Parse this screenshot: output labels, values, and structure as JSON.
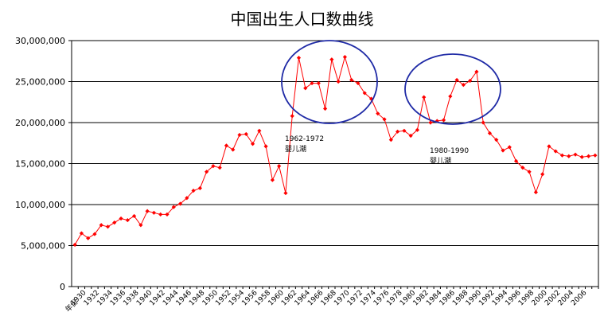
{
  "chart_data": {
    "type": "line",
    "title": "中国出生人口数曲线",
    "xlabel": "年份",
    "ylabel": "",
    "ylim": [
      0,
      30000000
    ],
    "y_ticks": [
      "0",
      "5,000,000",
      "10,000,000",
      "15,000,000",
      "20,000,000",
      "25,000,000",
      "30,000,000"
    ],
    "grid": "horizontal",
    "x_tick_labels": [
      "1930",
      "1932",
      "1934",
      "1936",
      "1938",
      "1940",
      "1942",
      "1944",
      "1946",
      "1948",
      "1950",
      "1952",
      "1954",
      "1956",
      "1958",
      "1960",
      "1962",
      "1964",
      "1966",
      "1968",
      "1970",
      "1972",
      "1974",
      "1976",
      "1978",
      "1980",
      "1982",
      "1984",
      "1986",
      "1988",
      "1990",
      "1992",
      "1994",
      "1996",
      "1998",
      "2000",
      "2002",
      "2004",
      "2006"
    ],
    "x": [
      1929,
      1930,
      1931,
      1932,
      1933,
      1934,
      1935,
      1936,
      1937,
      1938,
      1939,
      1940,
      1941,
      1942,
      1943,
      1944,
      1945,
      1946,
      1947,
      1948,
      1949,
      1950,
      1951,
      1952,
      1953,
      1954,
      1955,
      1956,
      1957,
      1958,
      1959,
      1960,
      1961,
      1962,
      1963,
      1964,
      1965,
      1966,
      1967,
      1968,
      1969,
      1970,
      1971,
      1972,
      1973,
      1974,
      1975,
      1976,
      1977,
      1978,
      1979,
      1980,
      1981,
      1982,
      1983,
      1984,
      1985,
      1986,
      1987,
      1988,
      1989,
      1990,
      1991,
      1992,
      1993,
      1994,
      1995,
      1996,
      1997,
      1998,
      1999,
      2000,
      2001,
      2002,
      2003,
      2004,
      2005,
      2006,
      2007,
      2008
    ],
    "values": [
      5100000,
      6500000,
      5900000,
      6400000,
      7500000,
      7300000,
      7800000,
      8300000,
      8100000,
      8600000,
      7500000,
      9200000,
      9000000,
      8800000,
      8800000,
      9700000,
      10100000,
      10800000,
      11700000,
      12000000,
      14000000,
      14700000,
      14500000,
      17200000,
      16700000,
      18500000,
      18600000,
      17400000,
      19000000,
      17100000,
      13000000,
      14700000,
      11400000,
      20800000,
      27900000,
      24200000,
      24800000,
      24800000,
      21700000,
      27700000,
      25000000,
      28000000,
      25200000,
      24800000,
      23600000,
      22900000,
      21100000,
      20400000,
      17900000,
      18900000,
      19000000,
      18400000,
      19100000,
      23100000,
      20000000,
      20200000,
      20300000,
      23200000,
      25200000,
      24600000,
      25100000,
      26200000,
      20000000,
      18700000,
      17900000,
      16600000,
      17000000,
      15300000,
      14500000,
      14000000,
      11500000,
      13700000,
      17100000,
      16500000,
      16000000,
      15900000,
      16100000,
      15800000,
      15900000,
      16000000
    ],
    "series_color": "#ff0000",
    "annotations": [
      {
        "label_line1": "1962-1972",
        "label_line2": "婴儿潮",
        "circle_range": [
          1962,
          1972
        ]
      },
      {
        "label_line1": "1980-1990",
        "label_line2": "婴儿潮",
        "circle_range": [
          1980,
          1990
        ]
      }
    ],
    "circle_color": "#1f2aa6"
  }
}
